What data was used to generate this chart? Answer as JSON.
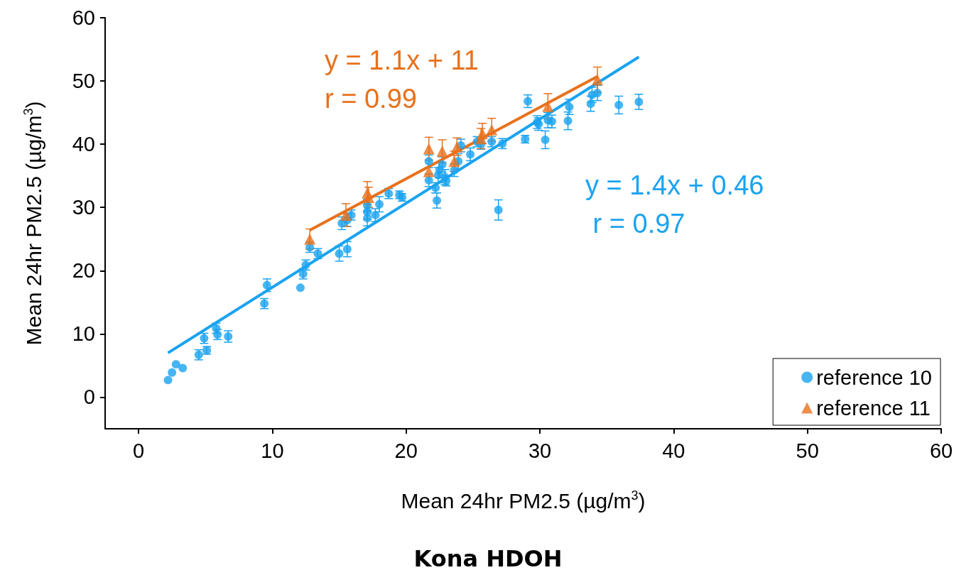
{
  "chart_data": {
    "type": "scatter",
    "title": "Kona HDOH",
    "xlabel": "Mean 24hr PM2.5 (µg/m$^{3}$)",
    "ylabel": "Mean 24hr PM2.5 (µg/m$^{3}$)",
    "xlim": [
      -2.5,
      60
    ],
    "ylim": [
      -5,
      60
    ],
    "xticks": [
      0,
      10,
      20,
      30,
      40,
      50,
      60
    ],
    "yticks": [
      0,
      10,
      20,
      30,
      40,
      50,
      60
    ],
    "grid": false,
    "legend": "bottom right",
    "series": [
      {
        "name": "reference 10",
        "color": "#1aa3f0",
        "marker": "circle",
        "x": [
          2.2,
          2.5,
          2.8,
          3.3,
          4.5,
          4.9,
          5.1,
          5.8,
          5.9,
          6.7,
          9.4,
          9.6,
          12.1,
          12.3,
          12.5,
          12.8,
          13.4,
          15.0,
          15.6,
          15.2,
          15.6,
          15.9,
          17.1,
          17.1,
          17.1,
          17.7,
          18.0,
          18.7,
          19.5,
          19.7,
          21.7,
          21.7,
          22.2,
          22.3,
          22.4,
          22.5,
          22.7,
          22.9,
          23.0,
          23.6,
          23.9,
          24.1,
          24.8,
          25.3,
          25.6,
          26.4,
          27.2,
          26.9,
          28.9,
          29.1,
          29.8,
          29.9,
          30.4,
          30.6,
          30.9,
          32.1,
          32.2,
          33.8,
          33.9,
          34.3,
          35.9,
          37.4
        ],
        "values": [
          2.7,
          3.9,
          5.2,
          4.6,
          6.7,
          9.3,
          7.4,
          10.9,
          9.9,
          9.6,
          14.8,
          17.7,
          17.3,
          19.5,
          20.9,
          23.7,
          22.7,
          22.7,
          23.4,
          27.5,
          28.0,
          28.8,
          28.3,
          29.3,
          30.3,
          28.8,
          30.5,
          32.2,
          32.0,
          31.6,
          34.3,
          37.3,
          33.1,
          31.1,
          35.1,
          35.9,
          36.8,
          34.8,
          34.2,
          35.9,
          37.3,
          39.8,
          38.4,
          40.4,
          40.0,
          40.4,
          40.1,
          29.6,
          40.8,
          46.8,
          43.5,
          43.2,
          40.7,
          43.8,
          43.6,
          43.7,
          45.9,
          46.4,
          47.8,
          48.1,
          46.2,
          46.7
        ],
        "errors": [
          null,
          null,
          null,
          null,
          0.8,
          0.8,
          0.6,
          0.8,
          0.8,
          0.9,
          0.8,
          1.0,
          null,
          0.8,
          0.8,
          0.8,
          0.8,
          1.2,
          1.2,
          1.0,
          1.0,
          0.8,
          1.2,
          1.2,
          1.0,
          1.0,
          1.2,
          0.8,
          0.6,
          0.6,
          1.0,
          1.0,
          0.8,
          1.2,
          1.2,
          1.2,
          1.2,
          1.2,
          0.8,
          1.0,
          1.2,
          1.0,
          1.0,
          0.8,
          0.8,
          0.8,
          0.8,
          1.6,
          0.6,
          1.0,
          1.0,
          1.0,
          1.4,
          1.2,
          1.0,
          1.4,
          1.2,
          1.2,
          1.2,
          1.2,
          1.4,
          1.2
        ]
      },
      {
        "name": "reference 11",
        "color": "#e8711c",
        "marker": "triangle",
        "x": [
          12.8,
          15.5,
          17.1,
          17.2,
          21.7,
          21.7,
          22.7,
          23.6,
          23.8,
          25.6,
          25.7,
          26.4,
          30.6,
          34.3
        ],
        "values": [
          25.0,
          28.8,
          32.3,
          31.6,
          39.3,
          35.7,
          38.9,
          37.3,
          39.6,
          40.9,
          41.7,
          42.3,
          46.0,
          50.2
        ],
        "errors": [
          1.6,
          1.8,
          1.8,
          1.6,
          1.8,
          null,
          1.8,
          1.6,
          1.4,
          1.6,
          1.6,
          1.8,
          2.0,
          2.0
        ]
      },
      {
        "type": "line",
        "color": "#e8711c",
        "marker": "none",
        "x": [
          12.8,
          34.3
        ],
        "values": [
          26.4,
          50.7
        ]
      },
      {
        "type": "line",
        "color": "#1aa3f0",
        "marker": "none",
        "x": [
          2.2,
          37.4
        ],
        "values": [
          7.0,
          53.8
        ]
      }
    ],
    "annotations": [
      "y = 1.1x + 11\nr = 0.99",
      "y = 1.4x + 0.46\n r = 0.97"
    ]
  }
}
